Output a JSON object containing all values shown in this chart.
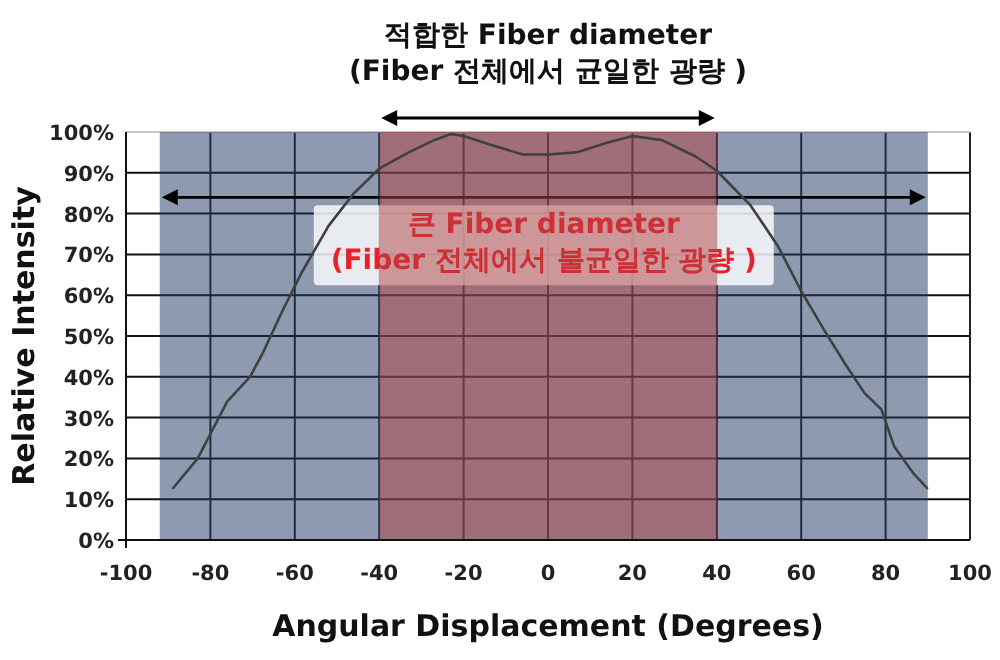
{
  "chart_data": {
    "type": "line",
    "xlabel": "Angular Displacement (Degrees)",
    "ylabel": "Relative Intensity",
    "x": [
      -89,
      -83,
      -79,
      -76,
      -70.6,
      -67.5,
      -63,
      -58.4,
      -52,
      -46,
      -40,
      -33,
      -27,
      -23,
      -20,
      -14,
      -6,
      0,
      6.7,
      14.4,
      20,
      27,
      35,
      40,
      48,
      54.5,
      60,
      65.7,
      70.5,
      75,
      79,
      82,
      86.4,
      90
    ],
    "series": [
      {
        "color": "#404040",
        "values": [
          12.5,
          20,
          28,
          34,
          40,
          46,
          56,
          65.5,
          77,
          85,
          91,
          95,
          98,
          99.5,
          99,
          97,
          94.5,
          94.5,
          95,
          97.5,
          99,
          98,
          94,
          90.5,
          82,
          72,
          61,
          51,
          43,
          36,
          32,
          23,
          16.6,
          12.5
        ]
      }
    ],
    "xlim": [
      -100,
      100
    ],
    "xticks": [
      -100,
      -80,
      -60,
      -40,
      -20,
      0,
      20,
      40,
      60,
      80,
      100
    ],
    "ylim": [
      0,
      100
    ],
    "yticks": [
      {
        "value": 0,
        "label": "0%"
      },
      {
        "value": 10,
        "label": "10%"
      },
      {
        "value": 20,
        "label": "20%"
      },
      {
        "value": 30,
        "label": "30%"
      },
      {
        "value": 40,
        "label": "40%"
      },
      {
        "value": 50,
        "label": "50%"
      },
      {
        "value": 60,
        "label": "60%"
      },
      {
        "value": 70,
        "label": "70%"
      },
      {
        "value": 80,
        "label": "80%"
      },
      {
        "value": 90,
        "label": "90%"
      },
      {
        "value": 100,
        "label": "100%"
      }
    ],
    "grid": true,
    "marker": "none",
    "line_style": "solid",
    "bands": [
      {
        "axis": "x",
        "from": -92,
        "to": 90,
        "label": "큰 Fiber diameter\n(Fiber 전체에서 불균일한 광량 )",
        "color": "#1b355f"
      },
      {
        "axis": "x",
        "from": -40,
        "to": 40,
        "label": "적합한 Fiber diameter\n(Fiber 전체에서 균일한 광량 )",
        "color": "#b14141"
      }
    ]
  }
}
